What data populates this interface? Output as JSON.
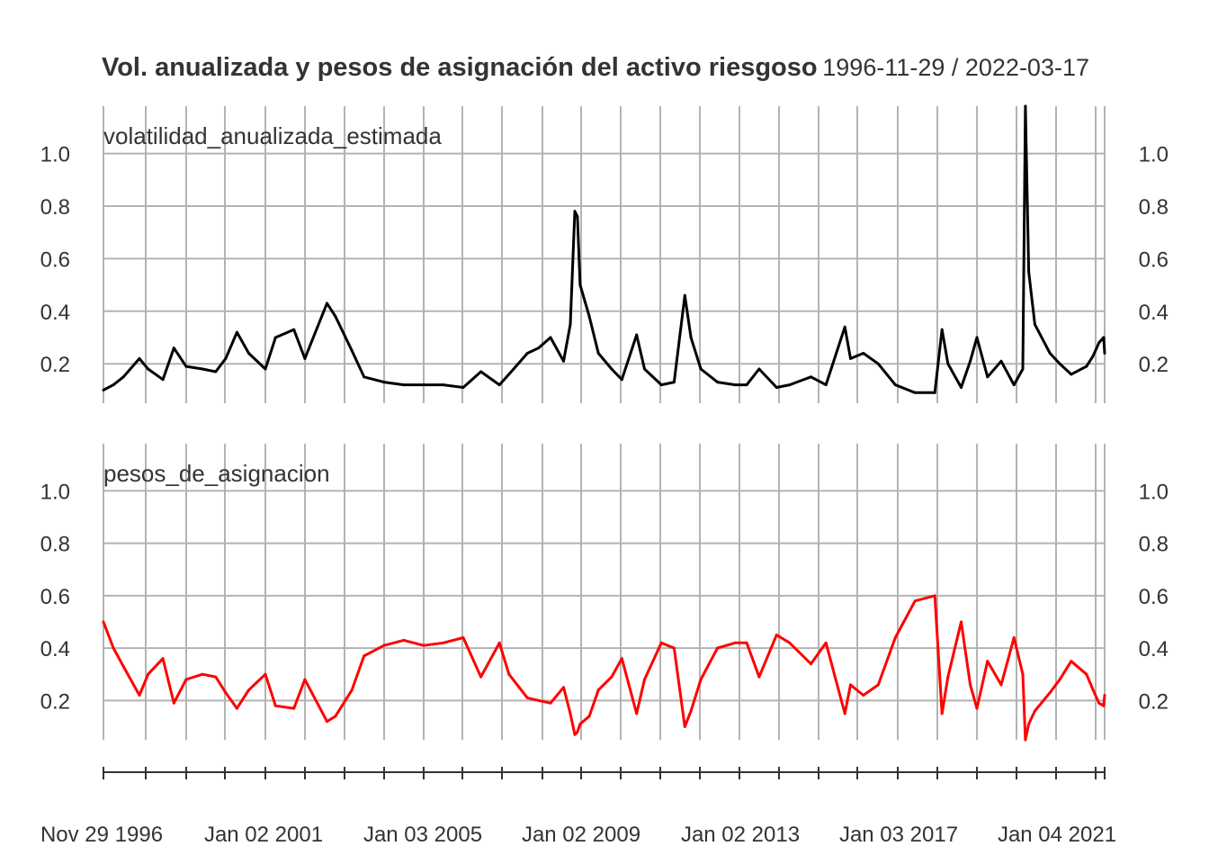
{
  "chart_data": {
    "type": "line",
    "title": "Vol. anualizada y pesos de asignación del activo riesgoso",
    "date_range": "1996-11-29 / 2022-03-17",
    "x_range": [
      "1996-11-29",
      "2022-03-17"
    ],
    "x_tick_labels": [
      "Nov 29 1996",
      "Jan 02 2001",
      "Jan 03 2005",
      "Jan 02 2009",
      "Jan 02 2013",
      "Jan 03 2017",
      "Jan 04 2021"
    ],
    "grid": true,
    "panels": [
      {
        "label": "volatilidad_anualizada_estimada",
        "color": "#000000",
        "ylim": [
          0.05,
          1.18
        ],
        "y_ticks": [
          "0.2",
          "0.4",
          "0.6",
          "0.8",
          "1.0"
        ],
        "series": {
          "x": [
            "1996-11-29",
            "1997-03-01",
            "1997-06-01",
            "1997-10-27",
            "1998-01-15",
            "1998-06-01",
            "1998-09-10",
            "1999-01-01",
            "1999-06-01",
            "1999-10-01",
            "2000-01-01",
            "2000-04-14",
            "2000-08-01",
            "2001-01-01",
            "2001-04-05",
            "2001-09-21",
            "2002-01-01",
            "2002-07-24",
            "2002-10-10",
            "2003-03-11",
            "2003-07-01",
            "2004-01-01",
            "2004-07-01",
            "2005-01-01",
            "2005-07-01",
            "2006-01-01",
            "2006-06-13",
            "2006-12-01",
            "2007-02-27",
            "2007-08-16",
            "2007-11-26",
            "2008-03-17",
            "2008-07-15",
            "2008-09-15",
            "2008-10-27",
            "2008-11-20",
            "2008-12-15",
            "2009-03-09",
            "2009-06-01",
            "2009-10-01",
            "2010-01-04",
            "2010-05-20",
            "2010-08-01",
            "2011-01-03",
            "2011-05-01",
            "2011-08-08",
            "2011-10-03",
            "2012-01-03",
            "2012-06-04",
            "2012-11-15",
            "2013-03-01",
            "2013-06-24",
            "2013-12-02",
            "2014-04-01",
            "2014-10-15",
            "2015-03-02",
            "2015-08-24",
            "2015-10-15",
            "2016-02-11",
            "2016-06-27",
            "2016-12-01",
            "2017-06-01",
            "2017-12-01",
            "2018-02-05",
            "2018-04-01",
            "2018-08-01",
            "2018-10-24",
            "2018-12-24",
            "2019-04-01",
            "2019-08-05",
            "2019-12-01",
            "2020-02-21",
            "2020-03-16",
            "2020-04-15",
            "2020-06-11",
            "2020-10-28",
            "2021-01-27",
            "2021-05-12",
            "2021-09-30",
            "2021-12-01",
            "2022-01-24",
            "2022-03-08",
            "2022-03-17"
          ],
          "y": [
            0.1,
            0.12,
            0.15,
            0.22,
            0.18,
            0.14,
            0.26,
            0.19,
            0.18,
            0.17,
            0.22,
            0.32,
            0.24,
            0.18,
            0.3,
            0.33,
            0.22,
            0.43,
            0.38,
            0.25,
            0.15,
            0.13,
            0.12,
            0.12,
            0.12,
            0.11,
            0.17,
            0.12,
            0.16,
            0.24,
            0.26,
            0.3,
            0.21,
            0.35,
            0.78,
            0.76,
            0.5,
            0.38,
            0.24,
            0.18,
            0.14,
            0.31,
            0.18,
            0.12,
            0.13,
            0.46,
            0.3,
            0.18,
            0.13,
            0.12,
            0.12,
            0.18,
            0.11,
            0.12,
            0.15,
            0.12,
            0.34,
            0.22,
            0.24,
            0.2,
            0.12,
            0.09,
            0.09,
            0.33,
            0.2,
            0.11,
            0.21,
            0.3,
            0.15,
            0.21,
            0.12,
            0.18,
            1.18,
            0.55,
            0.35,
            0.24,
            0.2,
            0.16,
            0.19,
            0.23,
            0.28,
            0.3,
            0.24
          ]
        }
      },
      {
        "label": "pesos_de_asignacion",
        "color": "#ff0000",
        "ylim": [
          0.05,
          1.18
        ],
        "y_ticks": [
          "0.2",
          "0.4",
          "0.6",
          "0.8",
          "1.0"
        ],
        "series": {
          "x": [
            "1996-11-29",
            "1997-03-01",
            "1997-06-01",
            "1997-10-27",
            "1998-01-15",
            "1998-06-01",
            "1998-09-10",
            "1999-01-01",
            "1999-06-01",
            "1999-10-01",
            "2000-01-01",
            "2000-04-14",
            "2000-08-01",
            "2001-01-01",
            "2001-04-05",
            "2001-09-21",
            "2002-01-01",
            "2002-07-24",
            "2002-10-10",
            "2003-03-11",
            "2003-07-01",
            "2004-01-01",
            "2004-07-01",
            "2005-01-01",
            "2005-07-01",
            "2006-01-01",
            "2006-06-13",
            "2006-12-01",
            "2007-02-27",
            "2007-08-16",
            "2007-11-26",
            "2008-03-17",
            "2008-07-15",
            "2008-09-15",
            "2008-10-27",
            "2008-11-20",
            "2008-12-15",
            "2009-03-09",
            "2009-06-01",
            "2009-10-01",
            "2010-01-04",
            "2010-05-20",
            "2010-08-01",
            "2011-01-03",
            "2011-05-01",
            "2011-08-08",
            "2011-10-03",
            "2012-01-03",
            "2012-06-04",
            "2012-11-15",
            "2013-03-01",
            "2013-06-24",
            "2013-12-02",
            "2014-04-01",
            "2014-10-15",
            "2015-03-02",
            "2015-08-24",
            "2015-10-15",
            "2016-02-11",
            "2016-06-27",
            "2016-12-01",
            "2017-06-01",
            "2017-12-01",
            "2018-02-05",
            "2018-04-01",
            "2018-08-01",
            "2018-10-24",
            "2018-12-24",
            "2019-04-01",
            "2019-08-05",
            "2019-12-01",
            "2020-02-21",
            "2020-03-16",
            "2020-04-15",
            "2020-06-11",
            "2020-10-28",
            "2021-01-27",
            "2021-05-12",
            "2021-09-30",
            "2021-12-01",
            "2022-01-24",
            "2022-03-08",
            "2022-03-17"
          ],
          "y": [
            0.5,
            0.4,
            0.33,
            0.22,
            0.3,
            0.36,
            0.19,
            0.28,
            0.3,
            0.29,
            0.23,
            0.17,
            0.24,
            0.3,
            0.18,
            0.17,
            0.28,
            0.12,
            0.14,
            0.24,
            0.37,
            0.41,
            0.43,
            0.41,
            0.42,
            0.44,
            0.29,
            0.42,
            0.3,
            0.21,
            0.2,
            0.19,
            0.25,
            0.15,
            0.07,
            0.08,
            0.11,
            0.14,
            0.24,
            0.29,
            0.36,
            0.15,
            0.28,
            0.42,
            0.4,
            0.1,
            0.16,
            0.28,
            0.4,
            0.42,
            0.42,
            0.29,
            0.45,
            0.42,
            0.34,
            0.42,
            0.15,
            0.26,
            0.22,
            0.26,
            0.44,
            0.58,
            0.6,
            0.15,
            0.29,
            0.5,
            0.26,
            0.17,
            0.35,
            0.26,
            0.44,
            0.3,
            0.05,
            0.11,
            0.16,
            0.23,
            0.28,
            0.35,
            0.3,
            0.24,
            0.19,
            0.18,
            0.22
          ]
        }
      }
    ]
  }
}
